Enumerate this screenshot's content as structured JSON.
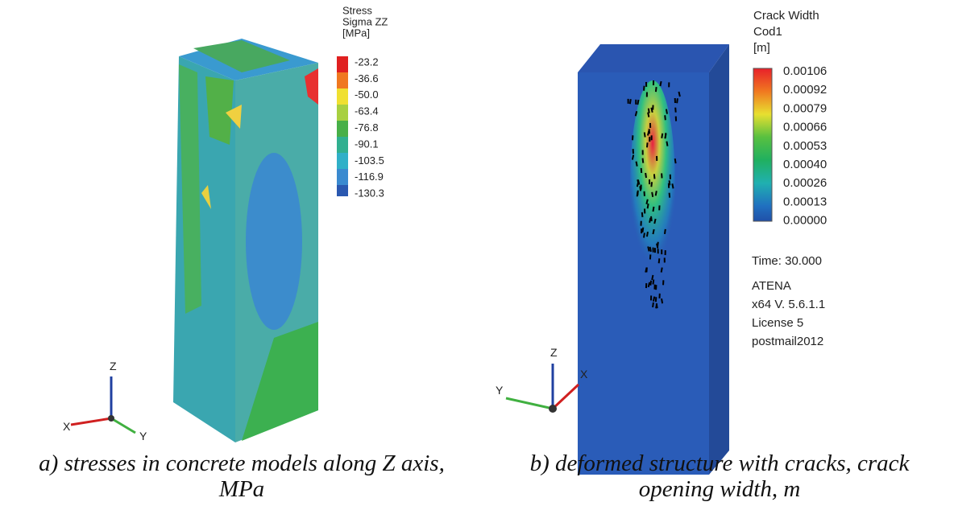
{
  "panels": [
    {
      "legend": {
        "title": [
          "Stress",
          "Sigma ZZ",
          "[MPa]"
        ],
        "labels": [
          "-23.2",
          "-36.6",
          "-50.0",
          "-63.4",
          "-76.8",
          "-90.1",
          "-103.5",
          "-116.9",
          "-130.3"
        ]
      },
      "axes": {
        "z": "Z",
        "x": "X",
        "y": "Y"
      },
      "caption": [
        "a) stresses in concrete models along Z axis,",
        "MPa"
      ]
    },
    {
      "legend": {
        "title": [
          "Crack Width",
          "Cod1",
          "[m]"
        ],
        "labels": [
          "0.00106",
          "0.00092",
          "0.00079",
          "0.00066",
          "0.00053",
          "0.00040",
          "0.00026",
          "0.00013",
          "0.00000"
        ]
      },
      "info": [
        "Time:  30.000",
        "ATENA",
        "x64 V. 5.6.1.1",
        "License 5",
        "postmail2012"
      ],
      "axes": {
        "z": "Z",
        "x": "X",
        "y": "Y"
      },
      "caption": [
        "b) deformed structure with cracks, crack",
        "opening width, m"
      ]
    }
  ]
}
